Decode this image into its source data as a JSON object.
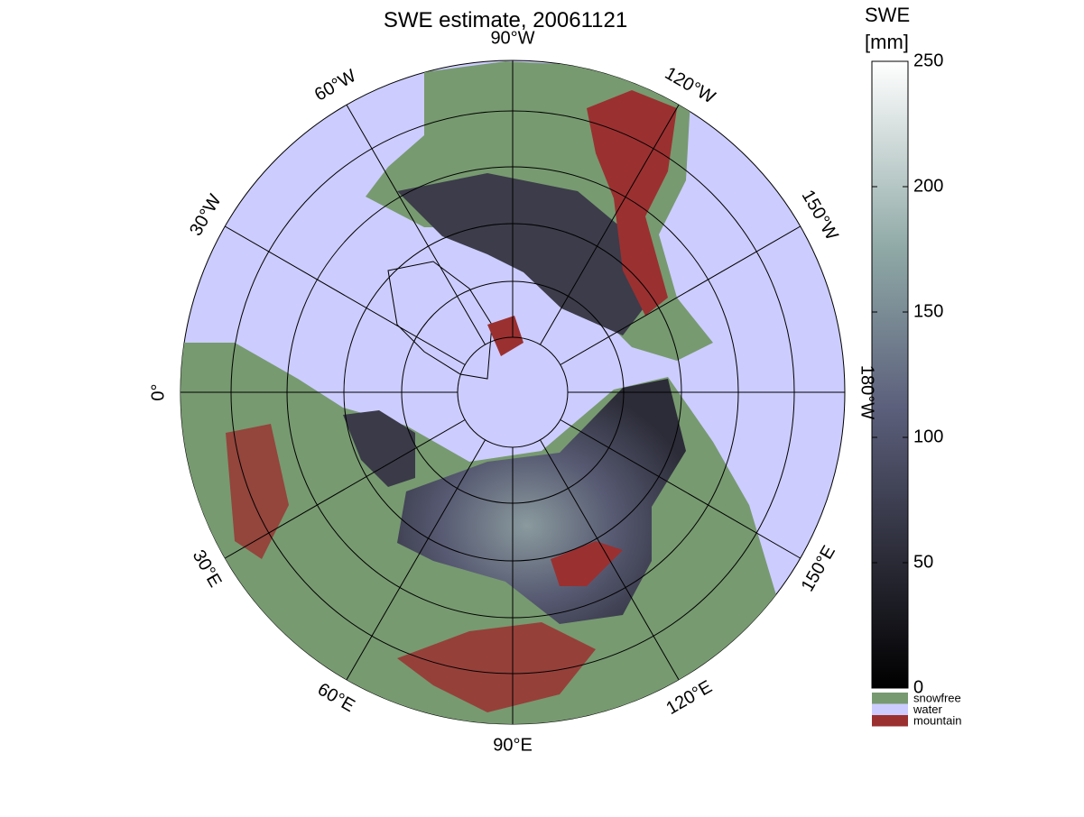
{
  "title": "SWE estimate, 20061121",
  "longitude_labels": [
    "90°W",
    "120°W",
    "150°W",
    "180°W",
    "150°E",
    "120°E",
    "90°E",
    "60°E",
    "30°E",
    "0°",
    "30°W",
    "60°W"
  ],
  "colorbar": {
    "label": [
      "SWE",
      "[mm]"
    ],
    "lim": [
      0,
      250
    ],
    "ticks": [
      0,
      50,
      100,
      150,
      200,
      250
    ],
    "classes": [
      {
        "name": "snowfree",
        "color": "#779a70"
      },
      {
        "name": "water",
        "color": "#ccccff"
      },
      {
        "name": "mountain",
        "color": "#9b3030"
      }
    ]
  }
}
